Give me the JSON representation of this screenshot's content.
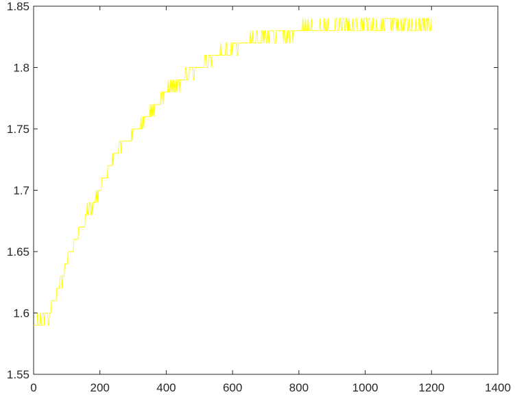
{
  "chart_data": {
    "type": "line",
    "title": "",
    "xlabel": "",
    "ylabel": "",
    "xlim": [
      0,
      1400
    ],
    "ylim": [
      1.55,
      1.85
    ],
    "x_ticks": [
      "0",
      "200",
      "400",
      "600",
      "800",
      "1000",
      "1200",
      "1400"
    ],
    "y_ticks": [
      "1.55",
      "1.6",
      "1.65",
      "1.7",
      "1.75",
      "1.8",
      "1.85"
    ],
    "grid": false,
    "legend": "none",
    "series": [
      {
        "color": "#ffff00",
        "x": [
          0,
          50,
          100,
          150,
          200,
          250,
          300,
          350,
          400,
          450,
          500,
          550,
          600,
          650,
          700,
          750,
          800,
          850,
          900,
          950,
          1000,
          1050,
          1100,
          1150,
          1200
        ],
        "y": [
          1.59,
          1.6,
          1.64,
          1.675,
          1.7,
          1.73,
          1.745,
          1.765,
          1.78,
          1.79,
          1.8,
          1.81,
          1.815,
          1.82,
          1.825,
          1.825,
          1.83,
          1.832,
          1.832,
          1.833,
          1.834,
          1.834,
          1.835,
          1.835,
          1.835
        ],
        "noise_band": [
          1.59,
          1.6
        ]
      }
    ],
    "colors": {
      "axis": "#262626",
      "background": "#ffffff",
      "line": "#ffff00"
    }
  }
}
